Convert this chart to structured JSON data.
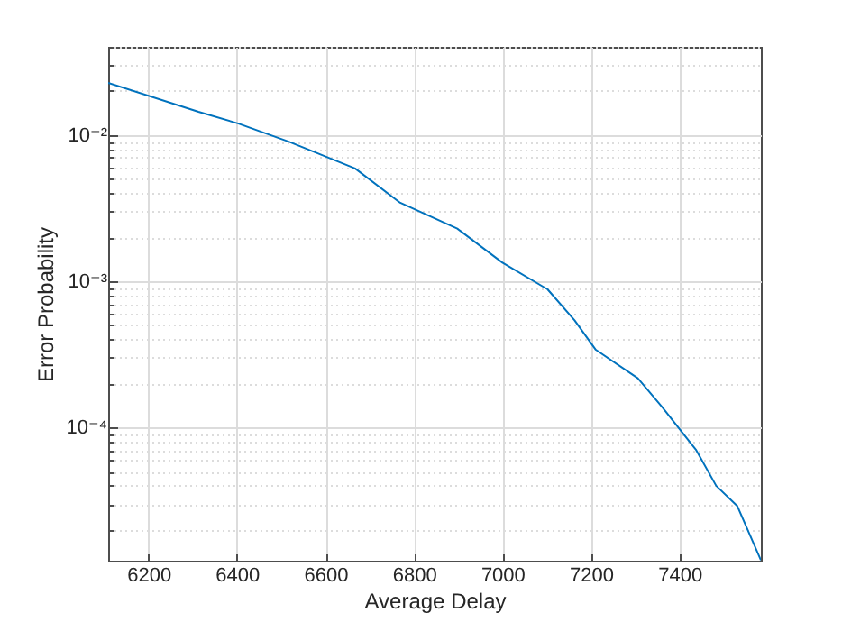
{
  "chart_data": {
    "type": "line",
    "xlabel": "Average Delay",
    "ylabel": "Error Probability",
    "x": [
      6109,
      6313,
      6402,
      6517,
      6667,
      6769,
      6898,
      7000,
      7102,
      7163,
      7211,
      7306,
      7361,
      7438,
      7483,
      7531,
      7584
    ],
    "series": [
      {
        "color": "#0072bd",
        "values": [
          0.0227,
          0.0144,
          0.012,
          0.009,
          0.0059,
          0.00344,
          0.00229,
          0.00134,
          0.00088,
          0.00054,
          0.00034,
          0.000217,
          0.000138,
          7e-05,
          4e-05,
          2.9e-05,
          1.24e-05
        ]
      }
    ],
    "xlim": [
      6109,
      7584
    ],
    "xticks": [
      6200,
      6400,
      6600,
      6800,
      7000,
      7200,
      7400
    ],
    "ylim": [
      1.23e-05,
      0.04
    ],
    "log": "y",
    "yticks": [
      {
        "value": 2e-05,
        "label": null
      },
      {
        "value": 3e-05,
        "label": null
      },
      {
        "value": 4e-05,
        "label": null
      },
      {
        "value": 5e-05,
        "label": null
      },
      {
        "value": 6e-05,
        "label": null
      },
      {
        "value": 7e-05,
        "label": null
      },
      {
        "value": 8e-05,
        "label": null
      },
      {
        "value": 9e-05,
        "label": null
      },
      {
        "value": 0.0001,
        "label": "10⁻⁴"
      },
      {
        "value": 0.0002,
        "label": null
      },
      {
        "value": 0.0003,
        "label": null
      },
      {
        "value": 0.0004,
        "label": null
      },
      {
        "value": 0.0005,
        "label": null
      },
      {
        "value": 0.0006,
        "label": null
      },
      {
        "value": 0.0007,
        "label": null
      },
      {
        "value": 0.0008,
        "label": null
      },
      {
        "value": 0.0009,
        "label": null
      },
      {
        "value": 0.001,
        "label": "10⁻³"
      },
      {
        "value": 0.002,
        "label": null
      },
      {
        "value": 0.003,
        "label": null
      },
      {
        "value": 0.004,
        "label": null
      },
      {
        "value": 0.005,
        "label": null
      },
      {
        "value": 0.006,
        "label": null
      },
      {
        "value": 0.007,
        "label": null
      },
      {
        "value": 0.008,
        "label": null
      },
      {
        "value": 0.009,
        "label": null
      },
      {
        "value": 0.01,
        "label": "10⁻²"
      },
      {
        "value": 0.02,
        "label": null
      },
      {
        "value": 0.03,
        "label": null
      },
      {
        "value": 0.04,
        "label": null
      }
    ],
    "grid": true,
    "marker": "none",
    "line_style": "solid"
  }
}
